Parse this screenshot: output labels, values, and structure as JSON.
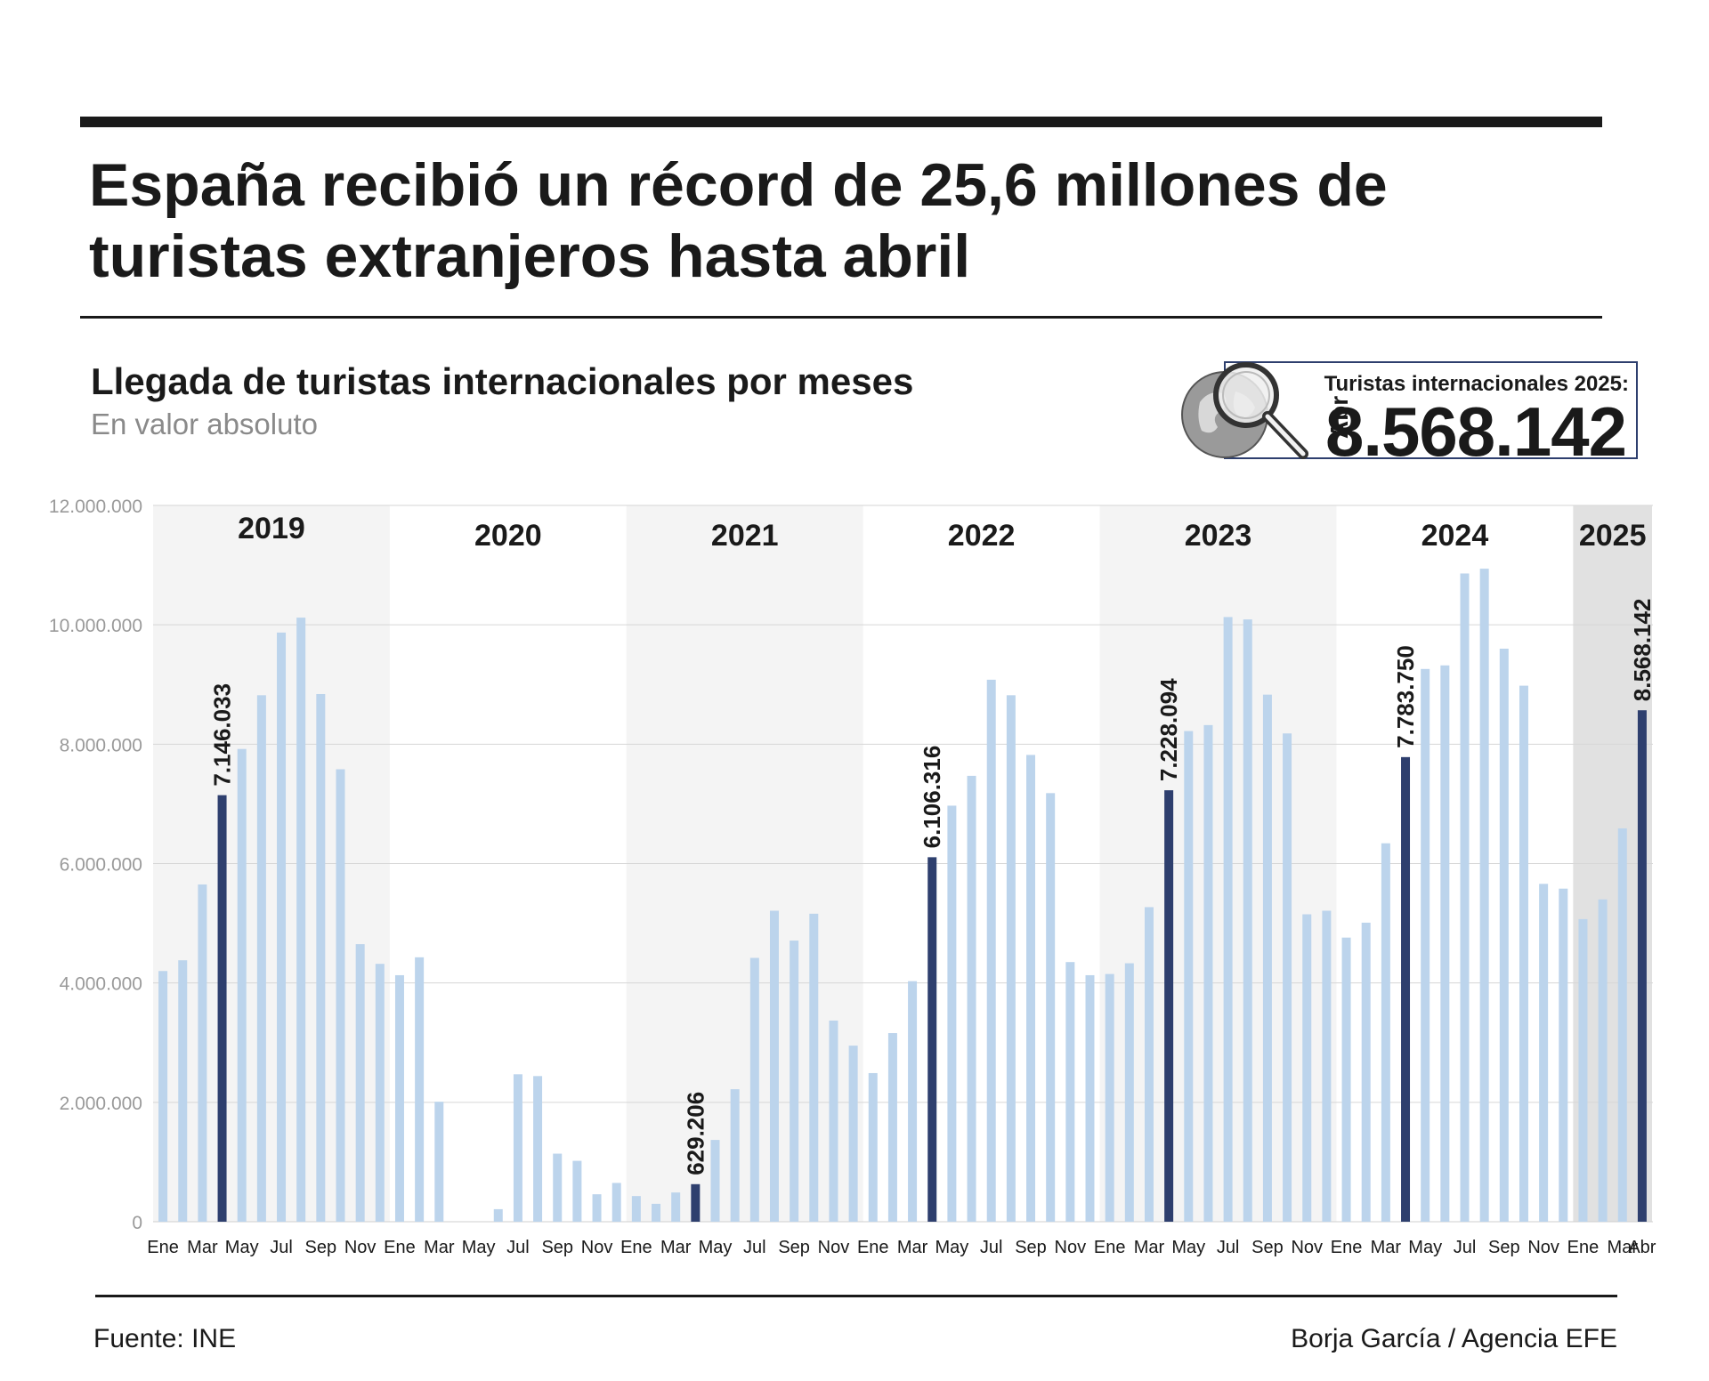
{
  "header": {
    "title": "España recibió un récord de 25,6 millones de turistas extranjeros hasta abril",
    "subtitle": "Llegada de turistas internacionales por meses",
    "note": "En valor absoluto"
  },
  "callout": {
    "month": "Abr",
    "label": "Turistas internacionales 2025:",
    "value": "8.568.142",
    "icon": "magnifier-globe-icon"
  },
  "footer": {
    "source": "Fuente: INE",
    "credit": "Borja García / Agencia EFE"
  },
  "colors": {
    "bar": "#bcd4ec",
    "bar_highlight": "#2e3f6e",
    "band_shaded": "#f4f4f4",
    "band_last": "#e1e1e1",
    "grid": "#d6d6d6",
    "tick_text": "#9a9a9a"
  },
  "chart_data": {
    "type": "bar",
    "title": "Llegada de turistas internacionales por meses",
    "ylim": [
      0,
      12000000
    ],
    "y_ticks": [
      0,
      2000000,
      4000000,
      6000000,
      8000000,
      10000000,
      12000000
    ],
    "y_tick_labels": [
      "0",
      "2.000.000",
      "4.000.000",
      "6.000.000",
      "8.000.000",
      "10.000.000",
      "12.000.000"
    ],
    "grid": true,
    "years": [
      {
        "label": "2019",
        "months": 12,
        "shaded": true
      },
      {
        "label": "2020",
        "months": 12,
        "shaded": false
      },
      {
        "label": "2021",
        "months": 12,
        "shaded": true
      },
      {
        "label": "2022",
        "months": 12,
        "shaded": false
      },
      {
        "label": "2023",
        "months": 12,
        "shaded": true
      },
      {
        "label": "2024",
        "months": 12,
        "shaded": false
      },
      {
        "label": "2025",
        "months": 4,
        "shaded": "dark"
      }
    ],
    "month_labels": [
      "Ene",
      "",
      "Mar",
      "",
      "May",
      "",
      "Jul",
      "",
      "Sep",
      "",
      "Nov",
      "",
      "Ene",
      "",
      "Mar",
      "",
      "May",
      "",
      "Jul",
      "",
      "Sep",
      "",
      "Nov",
      "",
      "Ene",
      "",
      "Mar",
      "",
      "May",
      "",
      "Jul",
      "",
      "Sep",
      "",
      "Nov",
      "",
      "Ene",
      "",
      "Mar",
      "",
      "May",
      "",
      "Jul",
      "",
      "Sep",
      "",
      "Nov",
      "",
      "Ene",
      "",
      "Mar",
      "",
      "May",
      "",
      "Jul",
      "",
      "Sep",
      "",
      "Nov",
      "",
      "Ene",
      "",
      "Mar",
      "",
      "May",
      "",
      "Jul",
      "",
      "Sep",
      "",
      "Nov",
      "",
      "Ene",
      "",
      "Mar",
      "Abr"
    ],
    "values": [
      4200000,
      4380000,
      5650000,
      7146033,
      7920000,
      8820000,
      9870000,
      10120000,
      8840000,
      7580000,
      4650000,
      4320000,
      4130000,
      4430000,
      2010000,
      0,
      0,
      210000,
      2470000,
      2440000,
      1140000,
      1020000,
      460000,
      650000,
      430000,
      300000,
      490000,
      629206,
      1370000,
      2220000,
      4420000,
      5210000,
      4710000,
      5160000,
      3370000,
      2950000,
      2490000,
      3160000,
      4030000,
      6106316,
      6970000,
      7470000,
      9080000,
      8820000,
      7820000,
      7180000,
      4350000,
      4130000,
      4150000,
      4330000,
      5270000,
      7228094,
      8220000,
      8320000,
      10130000,
      10090000,
      8830000,
      8180000,
      5150000,
      5210000,
      4760000,
      5010000,
      6340000,
      7783750,
      9260000,
      9320000,
      10860000,
      10940000,
      9600000,
      8980000,
      5660000,
      5580000,
      5070000,
      5400000,
      6590000,
      8568142
    ],
    "highlights": [
      {
        "index": 3,
        "label": "7.146.033"
      },
      {
        "index": 27,
        "label": "629.206"
      },
      {
        "index": 39,
        "label": "6.106.316"
      },
      {
        "index": 51,
        "label": "7.228.094"
      },
      {
        "index": 63,
        "label": "7.783.750"
      },
      {
        "index": 75,
        "label": "8.568.142"
      }
    ]
  }
}
